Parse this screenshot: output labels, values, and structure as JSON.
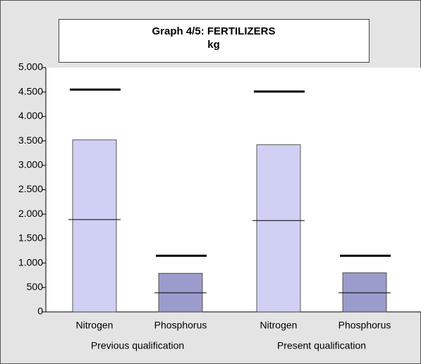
{
  "chart_data": {
    "type": "bar",
    "title": "Graph 4/5: FERTILIZERS",
    "subtitle": "kg",
    "categories": [
      "Nitrogen",
      "Phosphorus",
      "Nitrogen",
      "Phosphorus"
    ],
    "groups": [
      "Previous qualification",
      "Present qualification"
    ],
    "colors": [
      "#d0d0f4",
      "#9c9ccc",
      "#d0d0f4",
      "#9c9ccc"
    ],
    "series": [
      {
        "color": "#d0d0f4",
        "values": [
          3520,
          790,
          3420,
          800
        ]
      },
      {
        "color": "#000000",
        "values": [
          1890,
          390,
          1870,
          390
        ]
      },
      {
        "color": "#000000",
        "values": [
          4550,
          1150,
          4510,
          1150
        ]
      }
    ],
    "ylim": [
      0,
      5000
    ],
    "yticks": [
      0,
      500,
      {
        "value": 1000,
        "label": "1.000"
      },
      {
        "value": 1500,
        "label": "1.500"
      },
      {
        "value": 2000,
        "label": "2.000"
      },
      {
        "value": 2500,
        "label": "2.500"
      },
      {
        "value": 3000,
        "label": "3.000"
      },
      {
        "value": 3500,
        "label": "3.500"
      },
      {
        "value": 4000,
        "label": "4.000"
      },
      {
        "value": 4500,
        "label": "4.500"
      },
      {
        "value": 5000,
        "label": "5.000"
      }
    ]
  }
}
